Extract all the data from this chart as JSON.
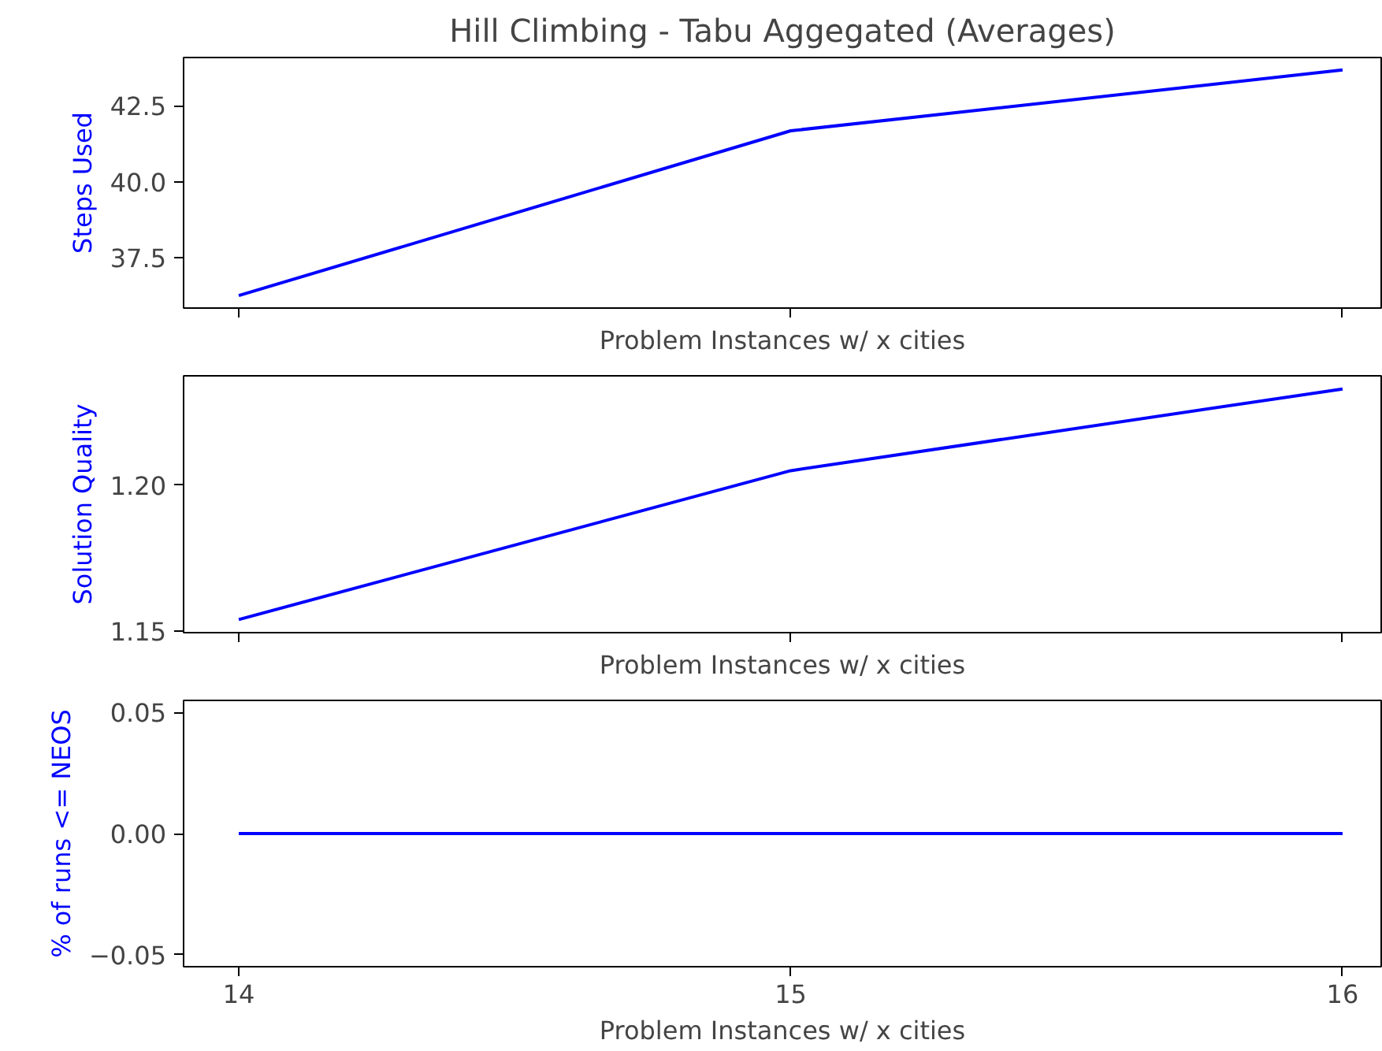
{
  "chart_data": [
    {
      "type": "line",
      "title": "Hill Climbing - Tabu Aggegated (Averages)",
      "xlabel": "Problem Instances w/ x cities",
      "ylabel": "Steps Used",
      "x": [
        14,
        15,
        16
      ],
      "xlim": [
        13.9,
        16.07
      ],
      "xticks": [
        14,
        15,
        16
      ],
      "ylim": [
        35.85,
        44.09
      ],
      "yticks": [
        {
          "value": 37.5,
          "label": "37.5"
        },
        {
          "value": 40.0,
          "label": "40.0"
        },
        {
          "value": 42.5,
          "label": "42.5"
        }
      ],
      "tick_labels": "y",
      "grid": false,
      "series": [
        {
          "color": "#0000ff",
          "values": [
            36.26,
            41.68,
            43.68
          ]
        }
      ]
    },
    {
      "type": "line",
      "xlabel": "Problem Instances w/ x cities",
      "ylabel": "Solution Quality",
      "x": [
        14,
        15,
        16
      ],
      "xlim": [
        13.9,
        16.07
      ],
      "xticks": [
        14,
        15,
        16
      ],
      "ylim": [
        1.1495,
        1.2375
      ],
      "yticks": [
        {
          "value": 1.15,
          "label": "1.15"
        },
        {
          "value": 1.2,
          "label": "1.20"
        }
      ],
      "tick_labels": "y",
      "grid": false,
      "series": [
        {
          "color": "#0000ff",
          "values": [
            1.154,
            1.205,
            1.233
          ]
        }
      ]
    },
    {
      "type": "line",
      "xlabel": "Problem Instances w/ x cities",
      "ylabel": "% of runs <= NEOS",
      "x": [
        14,
        15,
        16
      ],
      "xlim": [
        13.9,
        16.07
      ],
      "xticks": [
        14,
        15,
        16
      ],
      "ylim": [
        -0.055,
        0.055
      ],
      "yticks": [
        {
          "value": -0.05,
          "label": "−0.05"
        },
        {
          "value": 0.0,
          "label": "0.00"
        },
        {
          "value": 0.05,
          "label": "0.05"
        }
      ],
      "grid": false,
      "series": [
        {
          "color": "#0000ff",
          "values": [
            0,
            0,
            0
          ]
        }
      ]
    }
  ]
}
